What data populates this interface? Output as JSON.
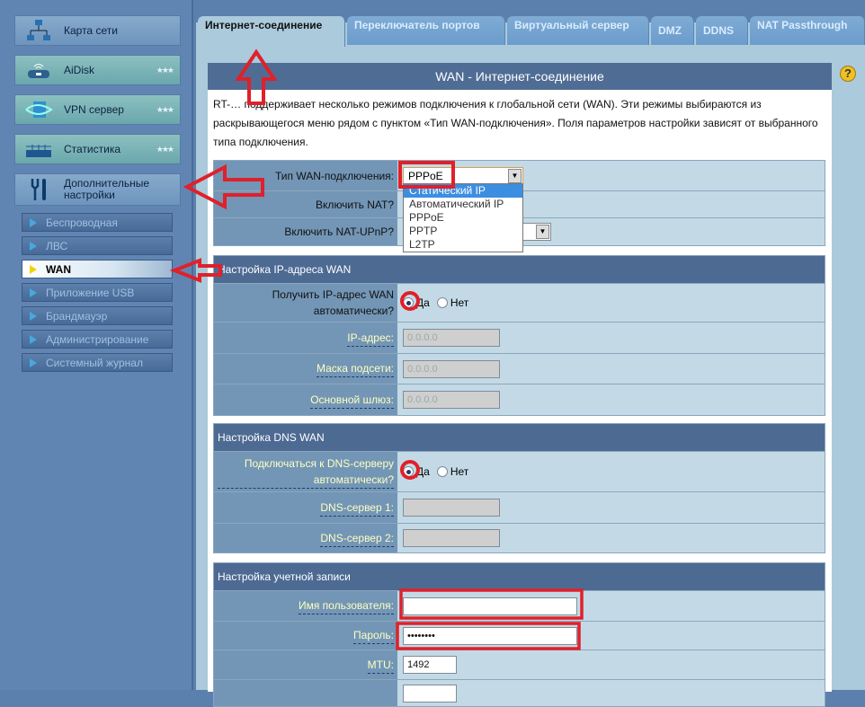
{
  "sidebar": {
    "main_items": [
      {
        "label": "Карта сети",
        "icon": "network-map-icon"
      },
      {
        "label": "AiDisk",
        "icon": "aidisk-icon"
      },
      {
        "label": "VPN сервер",
        "icon": "vpn-icon"
      },
      {
        "label": "Статистика",
        "icon": "statistics-icon"
      },
      {
        "label": "Дополнительные настройки",
        "icon": "tools-icon"
      }
    ],
    "sub_items": [
      {
        "label": "Беспроводная"
      },
      {
        "label": "ЛВС"
      },
      {
        "label": "WAN"
      },
      {
        "label": "Приложение USB"
      },
      {
        "label": "Брандмауэр"
      },
      {
        "label": "Администрирование"
      },
      {
        "label": "Системный журнал"
      }
    ],
    "active_sub": "WAN"
  },
  "tabs": [
    {
      "label": "Интернет-соединение",
      "active": true
    },
    {
      "label": "Переключатель портов"
    },
    {
      "label": "Виртуальный сервер"
    },
    {
      "label": "DMZ"
    },
    {
      "label": "DDNS"
    },
    {
      "label": "NAT Passthrough"
    }
  ],
  "panel": {
    "title": "WAN - Интернет-соединение",
    "description": "RT-… поддерживает несколько режимов подключения к глобальной сети (WAN). Эти режимы выбираются из раскрывающегося меню рядом с пунктом «Тип WAN-подключения». Поля параметров настройки зависят от выбранного типа подключения.",
    "general": {
      "wan_type_label": "Тип WAN-подключения:",
      "wan_type_value": "PPPoE",
      "wan_type_options": [
        "Статический IP",
        "Автоматический IP",
        "PPPoE",
        "PPTP",
        "L2TP"
      ],
      "wan_type_highlighted": "Статический IP",
      "nat_label": "Включить NAT?",
      "upnp_label": "Включить NAT-UPnP?"
    },
    "ip_section": {
      "title": "Настройка IP-адреса WAN",
      "auto_label": "Получить IP-адрес WAN автоматически?",
      "yes": "Да",
      "no": "Нет",
      "auto_value": "Да",
      "ip_label": "IP-адрес:",
      "ip_value": "0.0.0.0",
      "mask_label": "Маска подсети:",
      "mask_value": "0.0.0.0",
      "gw_label": "Основной шлюз:",
      "gw_value": "0.0.0.0"
    },
    "dns_section": {
      "title": "Настройка DNS WAN",
      "auto_label": "Подключаться к DNS-серверу автоматически?",
      "yes": "Да",
      "no": "Нет",
      "auto_value": "Да",
      "dns1_label": "DNS-сервер 1:",
      "dns1_value": "",
      "dns2_label": "DNS-сервер 2:",
      "dns2_value": ""
    },
    "account_section": {
      "title": "Настройка учетной записи",
      "user_label": "Имя пользователя:",
      "user_value": "",
      "pass_label": "Пароль:",
      "pass_value": "••••••••",
      "mtu_label": "MTU:",
      "mtu_value": "1492"
    }
  },
  "colors": {
    "annotation": "#e0202a",
    "header": "#4d6a93",
    "label_link": "#ffffc0"
  }
}
